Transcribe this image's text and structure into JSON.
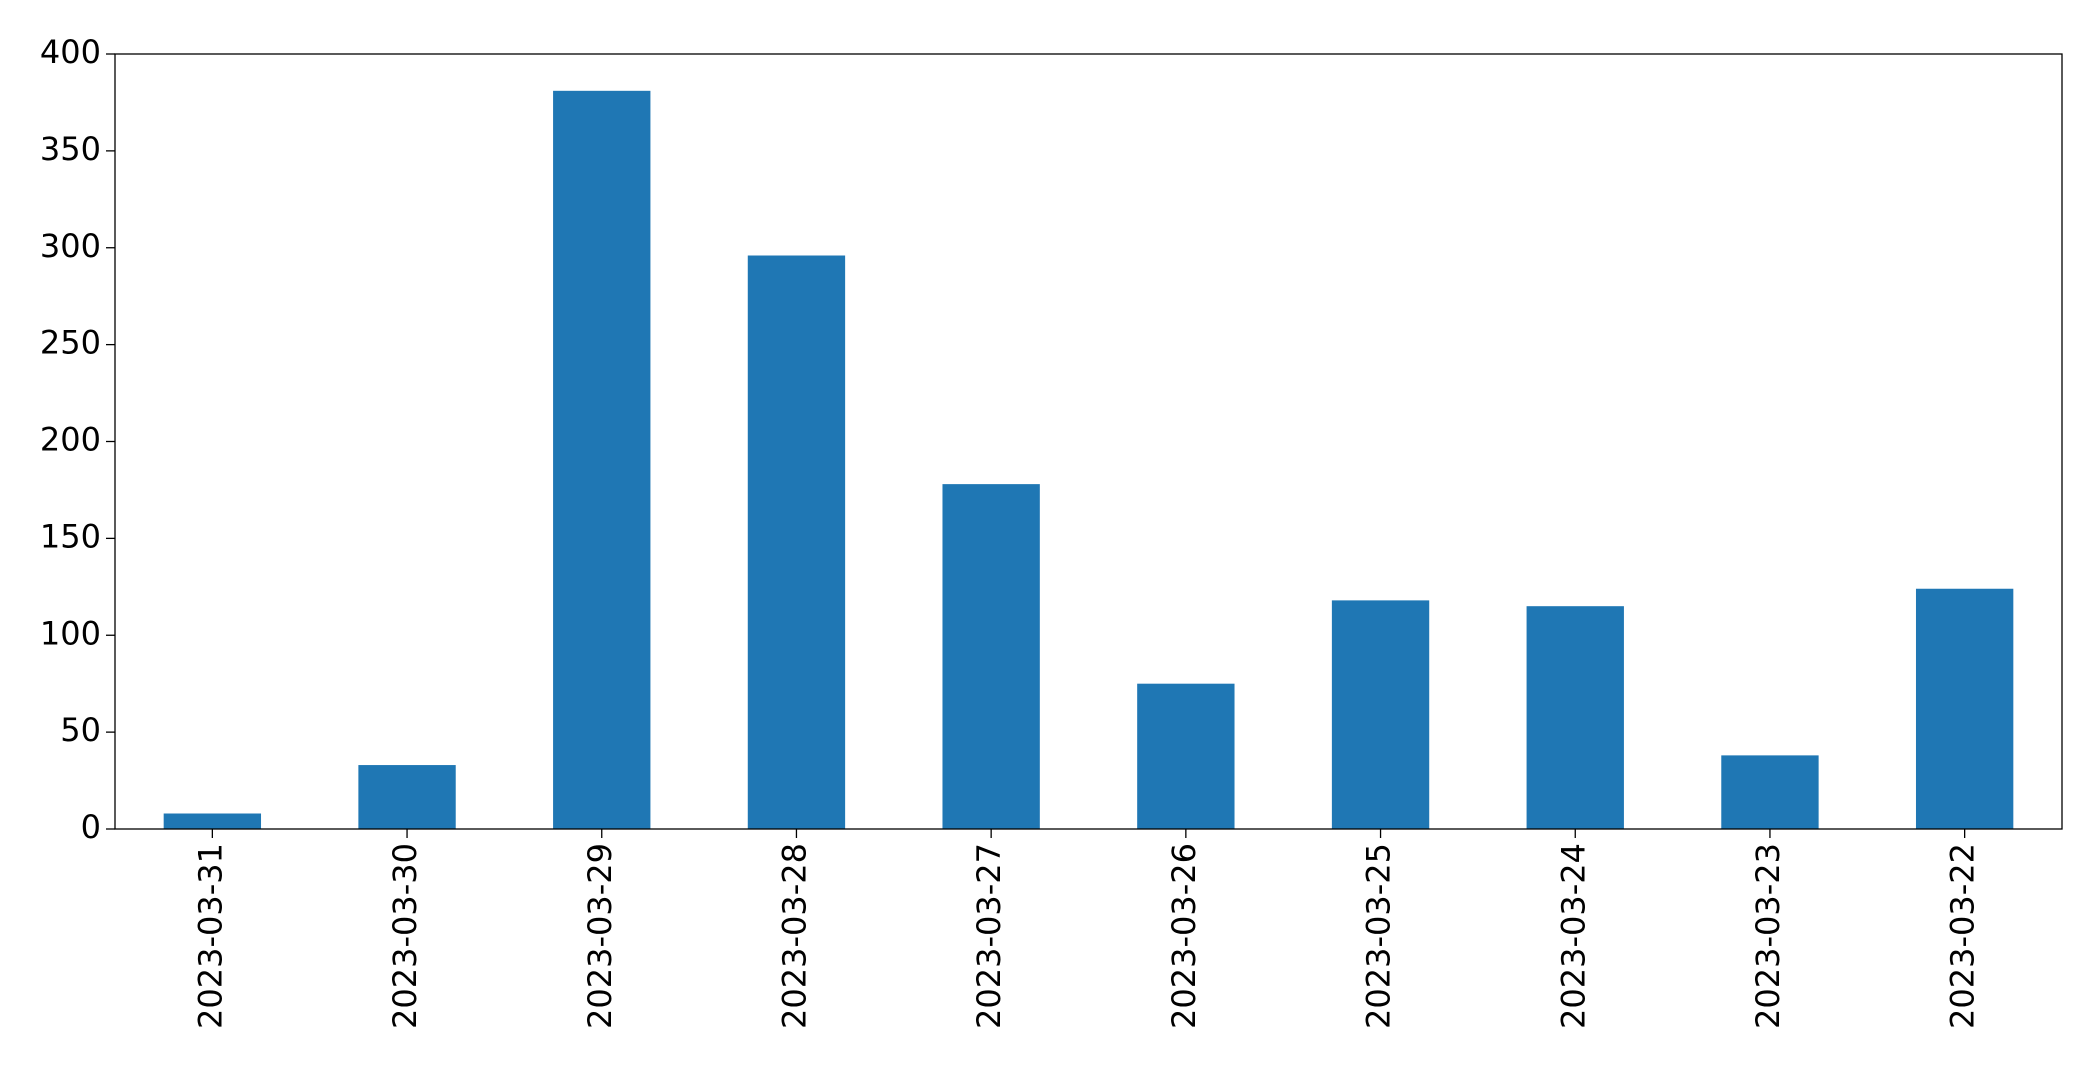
{
  "chart_data": {
    "type": "bar",
    "categories": [
      "2023-03-31",
      "2023-03-30",
      "2023-03-29",
      "2023-03-28",
      "2023-03-27",
      "2023-03-26",
      "2023-03-25",
      "2023-03-24",
      "2023-03-23",
      "2023-03-22"
    ],
    "values": [
      8,
      33,
      381,
      296,
      178,
      75,
      118,
      115,
      38,
      124
    ],
    "color": "#1f77b4",
    "ylim": [
      0,
      400
    ],
    "yticks": [
      0,
      50,
      100,
      150,
      200,
      250,
      300,
      350,
      400
    ],
    "grid": false
  }
}
